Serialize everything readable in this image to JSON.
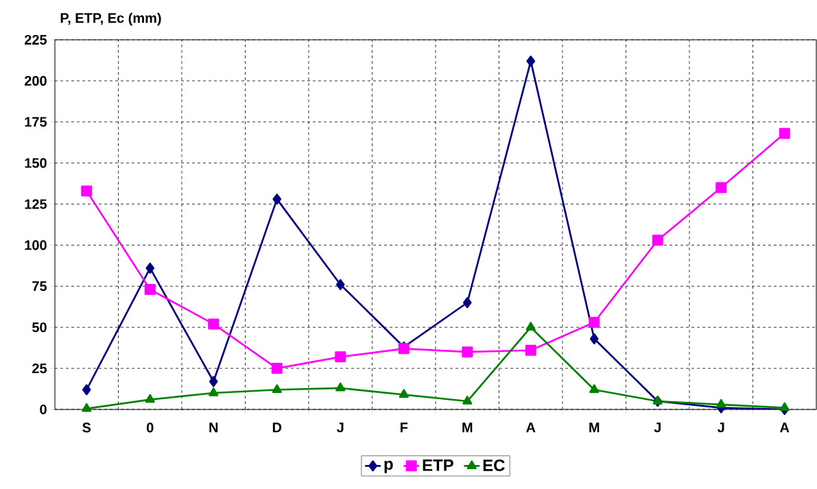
{
  "chart_data": {
    "type": "line",
    "ylabel": "P, ETP, Ec (mm)",
    "categories": [
      "S",
      "0",
      "N",
      "D",
      "J",
      "F",
      "M",
      "A",
      "M",
      "J",
      "J",
      "A"
    ],
    "series": [
      {
        "name": "p",
        "color": "#000080",
        "marker": "diamond",
        "values": [
          12,
          86,
          17,
          128,
          76,
          38,
          65,
          212,
          43,
          5,
          1,
          0
        ]
      },
      {
        "name": "ETP",
        "color": "#ff00ff",
        "marker": "square",
        "values": [
          133,
          73,
          52,
          25,
          32,
          37,
          35,
          36,
          53,
          103,
          135,
          168
        ]
      },
      {
        "name": "EC",
        "color": "#008000",
        "marker": "triangle",
        "values": [
          0.5,
          6,
          10,
          12,
          13,
          9,
          5,
          50,
          12,
          5,
          3,
          1
        ]
      }
    ],
    "ylim": [
      0,
      225
    ],
    "yticks": [
      0,
      25,
      50,
      75,
      100,
      125,
      150,
      175,
      200,
      225
    ],
    "grid": true,
    "legend": "bottom",
    "line_style": "solid"
  }
}
